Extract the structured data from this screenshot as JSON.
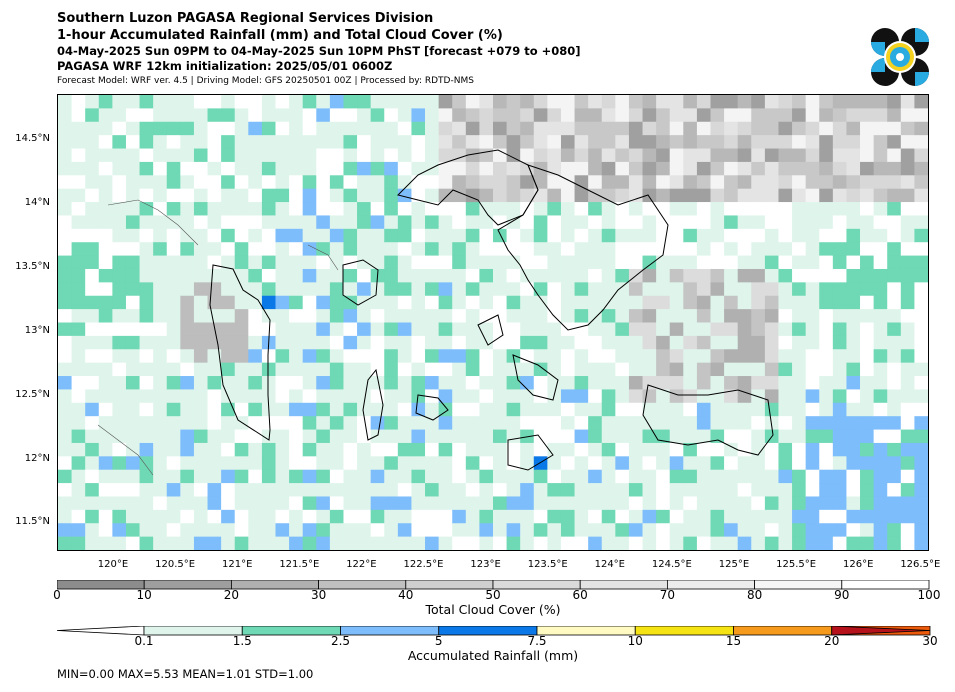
{
  "header": {
    "title_line1": "Southern Luzon PAGASA Regional Services Division",
    "title_line2": "1-hour Accumulated Rainfall (mm) and Total Cloud Cover (%)",
    "valid_time": "04-May-2025 Sun 09PM to 04-May-2025 Sun 10PM PhST [forecast +079 to +080]",
    "init_line": "PAGASA WRF 12km initialization: 2025/05/01 0600Z",
    "model_line": "Forecast Model: WRF ver. 4.5 | Driving Model: GFS 20250501 00Z | Processed by: RDTD-NMS"
  },
  "logo": {
    "name": "pagasa-logo",
    "colors": [
      "#111111",
      "#29abe2",
      "#ffffff",
      "#f4d21f"
    ]
  },
  "map": {
    "lat_labels": [
      "14.5°N",
      "14°N",
      "13.5°N",
      "13°N",
      "12.5°N",
      "12°N",
      "11.5°N"
    ],
    "lon_labels": [
      "120°E",
      "120.5°E",
      "121°E",
      "121.5°E",
      "122°E",
      "122.5°E",
      "123°E",
      "123.5°E",
      "124°E",
      "124.5°E",
      "125°E",
      "125.5°E",
      "126°E",
      "126.5°E"
    ],
    "extent": {
      "lon_min": 119.55,
      "lon_max": 126.55,
      "lat_min": 11.28,
      "lat_max": 14.84
    }
  },
  "cloud_colorbar": {
    "ticks": [
      "0",
      "10",
      "20",
      "30",
      "40",
      "50",
      "60",
      "70",
      "80",
      "90",
      "100"
    ],
    "colors": [
      "#8c8c8c",
      "#9e9e9e",
      "#b0b0b0",
      "#c0c0c0",
      "#cfcfcf",
      "#dadada",
      "#e3e3e3",
      "#ececec",
      "#f5f5f5",
      "#ffffff"
    ],
    "label": "Total Cloud Cover (%)"
  },
  "rain_colorbar": {
    "ticks": [
      "0.1",
      "1.5",
      "2.5",
      "5",
      "7.5",
      "10",
      "15",
      "20",
      "30"
    ],
    "colors": [
      "#ffffff",
      "#dff5ec",
      "#6fd8b4",
      "#7dbdfb",
      "#0a78e6",
      "#fff9c2",
      "#f5e313",
      "#f59a1c",
      "#ec5b0c",
      "#b5121b"
    ],
    "label": "Accumulated Rainfall (mm)"
  },
  "stats": "MIN=0.00   MAX=5.53   MEAN=1.01   STD=1.00"
}
